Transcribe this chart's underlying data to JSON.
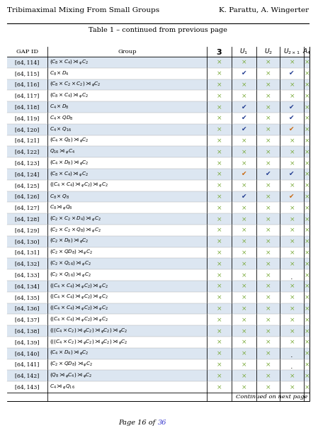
{
  "header_left": "Tribimaximal Mixing From Small Groups",
  "header_right": "K. Parattu, A. Wingerter",
  "table_caption": "Table 1 – continued from previous page",
  "footer_normal": "Page 16 of ",
  "footer_link": "36",
  "col_headers": [
    "GAP ID",
    "Group",
    "3",
    "$U_1$",
    "$U_2$",
    "$U_{2\\times1}$",
    "$A_4$"
  ],
  "rows": [
    [
      "[64, 114]",
      "$(C_8 \\times C_4) \\rtimes_\\varphi C_2$",
      "x",
      "x",
      "x",
      "x",
      "x"
    ],
    [
      "[64, 115]",
      "$C_8 \\times D_4$",
      "x",
      "ck",
      "x",
      "ck",
      "x"
    ],
    [
      "[64, 116]",
      "$(C_8 \\times C_2 \\times C_2) \\rtimes_\\varphi C_2$",
      "x",
      "x",
      "x",
      "x",
      "x"
    ],
    [
      "[64, 117]",
      "$(C_8 \\times C_4) \\rtimes_\\varphi C_2$",
      "x",
      "x",
      "x",
      "x",
      "x"
    ],
    [
      "[64, 118]",
      "$C_4 \\times D_8$",
      "x",
      "ck",
      "x",
      "ck",
      "x"
    ],
    [
      "[64, 119]",
      "$C_4 \\times QD_8$",
      "x",
      "ck",
      "x",
      "ck",
      "x"
    ],
    [
      "[64, 120]",
      "$C_4 \\times Q_{16}$",
      "x",
      "ck",
      "x",
      "ck_orange",
      "x"
    ],
    [
      "[64, 121]",
      "$(C_4 \\times Q_8) \\rtimes_\\varphi C_2$",
      "x",
      "x",
      "x",
      "x",
      "x"
    ],
    [
      "[64, 122]",
      "$Q_{16} \\rtimes_\\varphi C_4$",
      "x",
      "x",
      "x",
      "x",
      "x"
    ],
    [
      "[64, 123]",
      "$(C_4 \\times D_8) \\rtimes_\\varphi C_2$",
      "x",
      "x",
      "x",
      "x",
      "x"
    ],
    [
      "[64, 124]",
      "$(C_8 \\times C_4) \\rtimes_\\varphi C_2$",
      "x",
      "ck_orange",
      "ck",
      "ck",
      "x"
    ],
    [
      "[64, 125]",
      "$((C_4 \\times C_4) \\rtimes_\\varphi C_2) \\rtimes_\\varphi C_2$",
      "x",
      "x",
      "x",
      "x",
      "x"
    ],
    [
      "[64, 126]",
      "$C_8 \\times Q_8$",
      "x",
      "ck",
      "x",
      "ck_orange",
      "x"
    ],
    [
      "[64, 127]",
      "$C_8 \\rtimes_\\varphi Q_8$",
      "x",
      "x",
      "x",
      "x",
      "x"
    ],
    [
      "[64, 128]",
      "$(C_2 \\times C_2 \\times D_4) \\rtimes_\\varphi C_2$",
      "x",
      "x",
      "x",
      "x",
      "x"
    ],
    [
      "[64, 129]",
      "$(C_2 \\times C_2 \\times Q_8) \\rtimes_\\varphi C_2$",
      "x",
      "x",
      "x",
      "x",
      "x"
    ],
    [
      "[64, 130]",
      "$(C_2 \\times D_8) \\rtimes_\\varphi C_2$",
      "x",
      "x",
      "x",
      "x",
      "x"
    ],
    [
      "[64, 131]",
      "$(C_2 \\times QD_8) \\rtimes_\\varphi C_2$",
      "x",
      "x",
      "x",
      "x",
      "x"
    ],
    [
      "[64, 132]",
      "$(C_2 \\times Q_{16}) \\rtimes_\\varphi C_2$",
      "x",
      "x",
      "x",
      "x",
      "x"
    ],
    [
      "[64, 133]",
      "$(C_2 \\times Q_{16}) \\rtimes_\\varphi C_2$",
      "x",
      "x",
      "x",
      "dot",
      "x"
    ],
    [
      "[64, 134]",
      "$((C_4 \\times C_4) \\rtimes_\\varphi C_2) \\rtimes_\\varphi C_2$",
      "x",
      "x",
      "x",
      "x",
      "x"
    ],
    [
      "[64, 135]",
      "$((C_4 \\times C_4) \\rtimes_\\varphi C_2) \\rtimes_\\varphi C_2$",
      "x",
      "x",
      "x",
      "x",
      "x"
    ],
    [
      "[64, 136]",
      "$((C_4 \\times C_4) \\rtimes_\\varphi C_2) \\rtimes_\\varphi C_2$",
      "x",
      "x",
      "x",
      "x",
      "x"
    ],
    [
      "[64, 137]",
      "$((C_4 \\times C_4) \\rtimes_\\varphi C_2) \\rtimes_\\varphi C_2$",
      "x",
      "x",
      "x",
      "x",
      "x"
    ],
    [
      "[64, 138]",
      "$(((C_4 \\times C_2) \\rtimes_\\varphi C_2) \\rtimes_\\varphi C_2) \\rtimes_\\varphi C_2$",
      "x",
      "x",
      "x",
      "x",
      "x"
    ],
    [
      "[64, 139]",
      "$(((C_4 \\times C_2) \\rtimes_\\varphi C_2) \\rtimes_\\varphi C_2) \\rtimes_\\varphi C_2$",
      "x",
      "x",
      "x",
      "x",
      "x"
    ],
    [
      "[64, 140]",
      "$(C_4 \\times D_4) \\rtimes_\\varphi C_2$",
      "x",
      "x",
      "x",
      "dot",
      "x"
    ],
    [
      "[64, 141]",
      "$(C_2 \\times QD_8) \\rtimes_\\varphi C_2$",
      "x",
      "x",
      "x",
      "dot",
      "x"
    ],
    [
      "[64, 142]",
      "$(Q_8 \\rtimes_\\varphi C_4) \\rtimes_\\varphi C_2$",
      "x",
      "x",
      "x",
      "x",
      "x"
    ],
    [
      "[64, 143]",
      "$C_4 \\rtimes_\\varphi Q_{16}$",
      "x",
      "x",
      "x",
      "x",
      "x"
    ]
  ],
  "bg_even": "#dce6f1",
  "bg_odd": "#ffffff",
  "check_blue": "#1f3a8f",
  "check_orange": "#c8650a",
  "x_green": "#7aaa3a",
  "continued_text": "Continued on next page"
}
